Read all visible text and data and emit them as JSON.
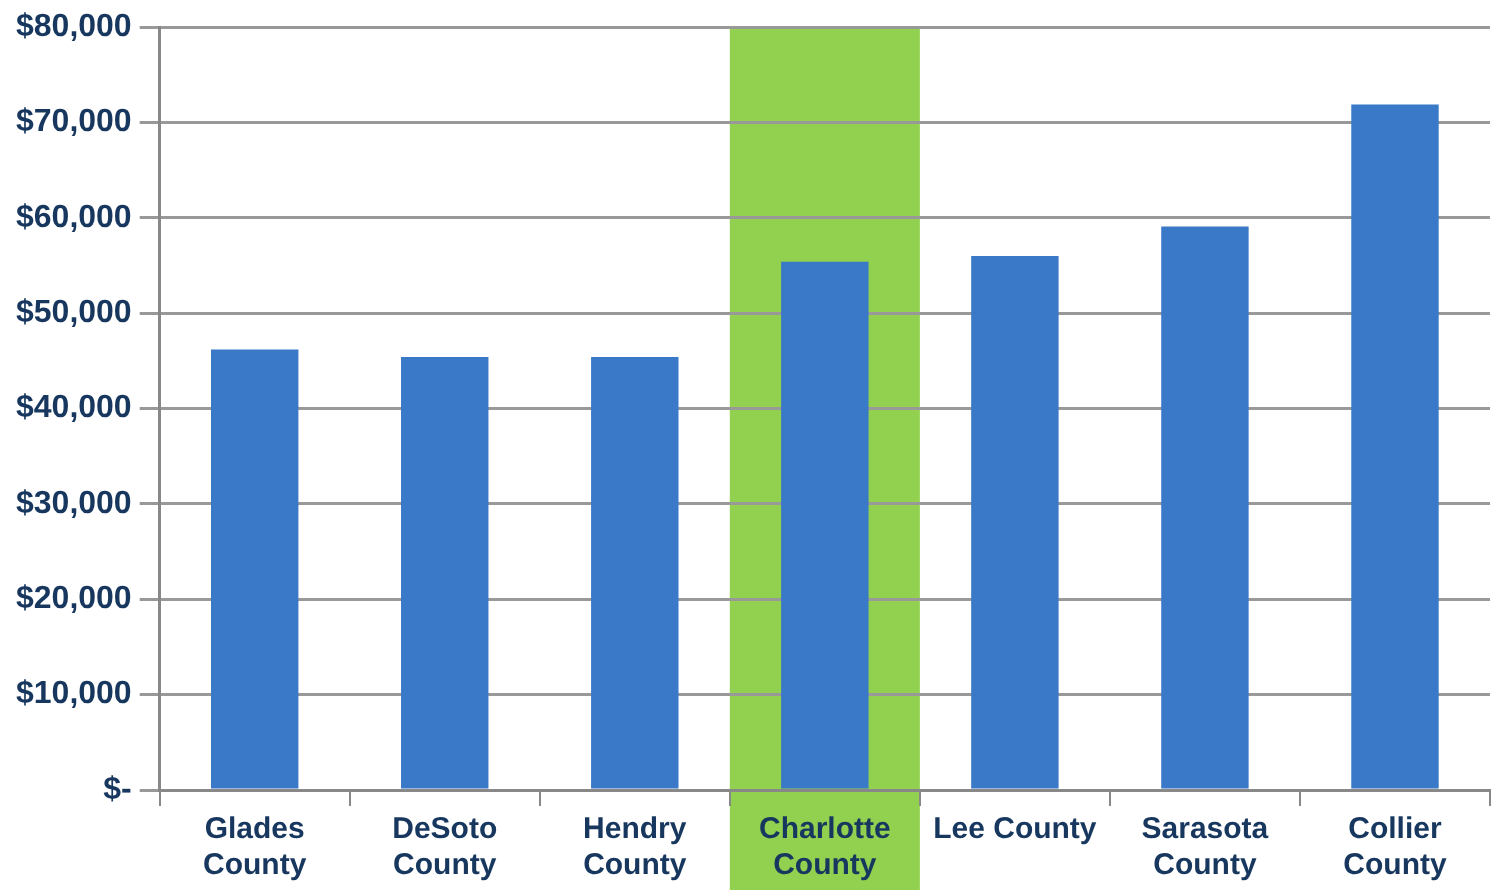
{
  "chart_data": {
    "type": "bar",
    "categories": [
      "Glades County",
      "DeSoto County",
      "Hendry County",
      "Charlotte County",
      "Lee County",
      "Sarasota County",
      "Collier County"
    ],
    "values": [
      46200,
      45400,
      45400,
      55400,
      56000,
      59100,
      71900
    ],
    "color": "#3a78c8",
    "ylim": [
      0,
      80000
    ],
    "yticks": [
      {
        "value": 0,
        "label": "$-"
      },
      {
        "value": 10000,
        "label": "$10,000"
      },
      {
        "value": 20000,
        "label": "$20,000"
      },
      {
        "value": 30000,
        "label": "$30,000"
      },
      {
        "value": 40000,
        "label": "$40,000"
      },
      {
        "value": 50000,
        "label": "$50,000"
      },
      {
        "value": 60000,
        "label": "$60,000"
      },
      {
        "value": 70000,
        "label": "$70,000"
      },
      {
        "value": 80000,
        "label": "$80,000"
      }
    ],
    "grid": "y",
    "bands": [
      {
        "axis": "x",
        "from": "Charlotte County",
        "to": "Charlotte County",
        "color": "#92d050"
      }
    ]
  }
}
